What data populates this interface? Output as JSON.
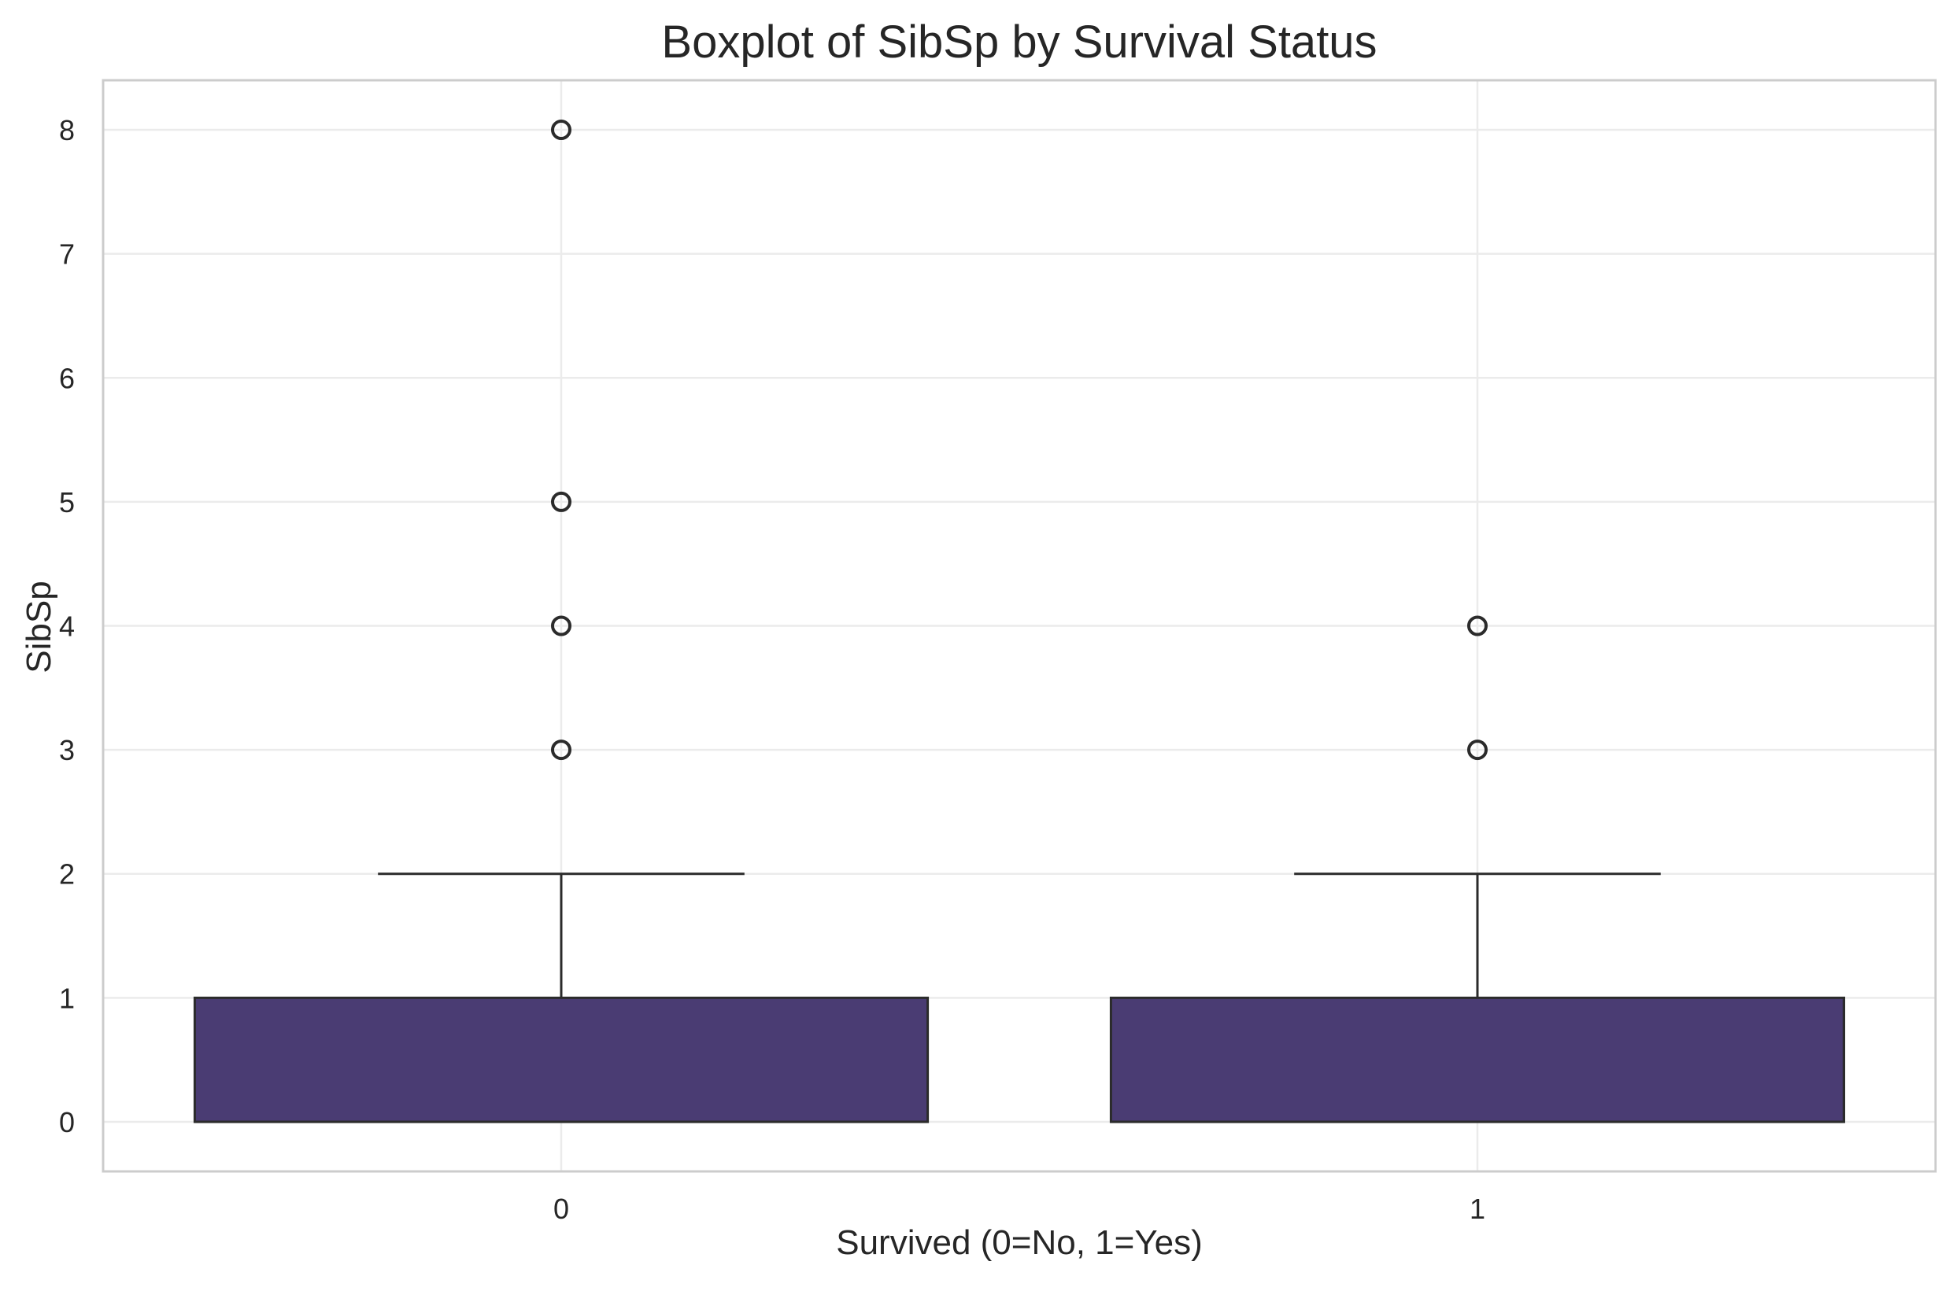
{
  "chart_data": {
    "type": "boxplot",
    "title": "Boxplot of SibSp by Survival Status",
    "xlabel": "Survived (0=No, 1=Yes)",
    "ylabel": "SibSp",
    "categories": [
      "0",
      "1"
    ],
    "ylim": [
      -0.4,
      8.4
    ],
    "yticks": [
      0,
      1,
      2,
      3,
      4,
      5,
      6,
      7,
      8
    ],
    "grid": true,
    "boxes": [
      {
        "category": "0",
        "whislo": 0,
        "q1": 0,
        "median": 0,
        "q3": 1,
        "whishi": 2,
        "fliers": [
          3,
          4,
          5,
          8
        ]
      },
      {
        "category": "1",
        "whislo": 0,
        "q1": 0,
        "median": 0,
        "q3": 1,
        "whishi": 2,
        "fliers": [
          3,
          4
        ]
      }
    ],
    "colors": {
      "box_fill": "#4a3c73",
      "line": "#2b2b2b",
      "grid": "#ebebeb",
      "frame": "#cccccc",
      "text": "#262626"
    }
  }
}
